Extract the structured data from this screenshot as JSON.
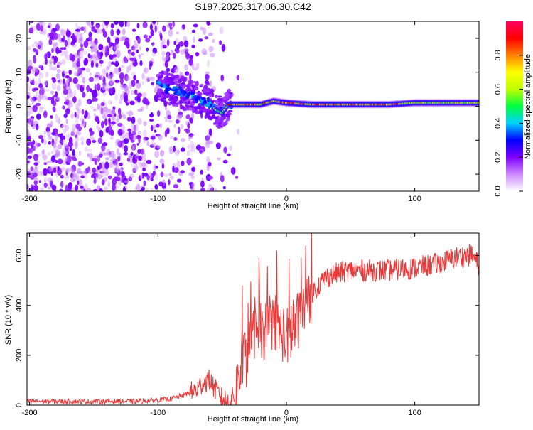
{
  "title": "S197.2025.317.06.30.C42",
  "chart_data": [
    {
      "type": "heatmap",
      "title": "S197.2025.317.06.30.C42",
      "xlabel": "Height of straight line (km)",
      "ylabel": "Frequency (Hz)",
      "xlim": [
        -202,
        150
      ],
      "ylim": [
        -25,
        25
      ],
      "xticks": [
        -200,
        -100,
        0,
        100
      ],
      "yticks": [
        -20,
        -10,
        0,
        10,
        20
      ],
      "description_series": [
        {
          "name": "dominant frequency ridge",
          "x": [
            -100,
            -90,
            -80,
            -70,
            -60,
            -55,
            -50,
            -45,
            -40,
            -30,
            -20,
            -15,
            -10,
            0,
            20,
            40,
            60,
            80,
            100,
            120,
            150
          ],
          "y": [
            6,
            5,
            4,
            2.5,
            1,
            -1,
            -2,
            0.5,
            0.5,
            0.5,
            0.5,
            1,
            1.5,
            1,
            0.5,
            0.5,
            0.5,
            0.5,
            1,
            1,
            1
          ]
        }
      ],
      "colorbar": {
        "label": "Normalized spectral amplitude",
        "range": [
          0.0,
          1.0
        ],
        "ticks": [
          0.0,
          0.2,
          0.4,
          0.6,
          0.8
        ],
        "tick_labels": [
          "0.0",
          "0.2",
          "0.4",
          "0.6",
          "0.8"
        ],
        "colors": [
          "#ffffff",
          "#cc88ff",
          "#7f00ff",
          "#0000ff",
          "#00d0ff",
          "#00ff40",
          "#c0ff00",
          "#ffff00",
          "#ff8000",
          "#ff0000",
          "#ff0060"
        ]
      }
    },
    {
      "type": "line",
      "xlabel": "Height of straight line (km)",
      "ylabel": "SNR (10 * v/v)",
      "xlim": [
        -202,
        150
      ],
      "ylim": [
        0,
        690
      ],
      "xticks": [
        -200,
        -100,
        0,
        100
      ],
      "yticks": [
        0,
        200,
        400,
        600
      ],
      "series": [
        {
          "name": "SNR",
          "color": "#e83a3a",
          "x": [
            -202,
            -180,
            -160,
            -140,
            -120,
            -100,
            -90,
            -80,
            -70,
            -65,
            -60,
            -55,
            -50,
            -45,
            -40,
            -35,
            -30,
            -25,
            -20,
            -15,
            -10,
            -5,
            0,
            10,
            20,
            30,
            40,
            50,
            60,
            80,
            100,
            110,
            120,
            130,
            140,
            145,
            150
          ],
          "y": [
            15,
            15,
            15,
            15,
            15,
            20,
            25,
            40,
            60,
            90,
            100,
            60,
            25,
            15,
            40,
            150,
            200,
            280,
            290,
            300,
            350,
            300,
            270,
            350,
            450,
            510,
            530,
            540,
            540,
            540,
            550,
            560,
            570,
            590,
            600,
            600,
            560
          ]
        }
      ]
    }
  ]
}
